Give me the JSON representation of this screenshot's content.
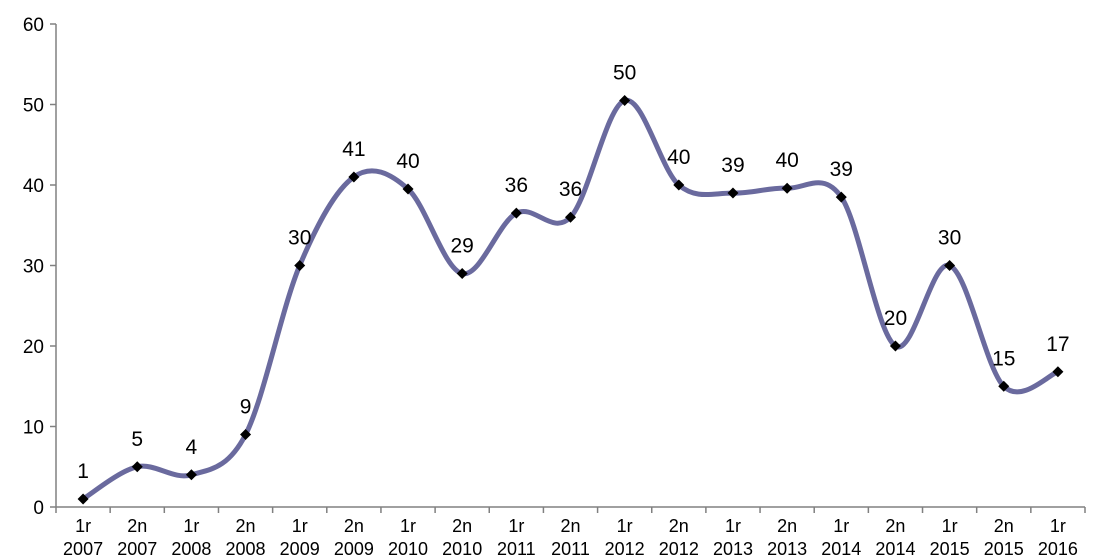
{
  "chart_data": {
    "type": "line",
    "title": "",
    "xlabel": "",
    "ylabel": "",
    "ylim": [
      0,
      60
    ],
    "yticks": [
      0,
      10,
      20,
      30,
      40,
      50,
      60
    ],
    "grid": false,
    "legend": "none",
    "smooth": true,
    "line_color": "#6a6a9e",
    "marker_color": "#000000",
    "categories": [
      [
        "1r",
        "2007"
      ],
      [
        "2n",
        "2007"
      ],
      [
        "1r",
        "2008"
      ],
      [
        "2n",
        "2008"
      ],
      [
        "1r",
        "2009"
      ],
      [
        "2n",
        "2009"
      ],
      [
        "1r",
        "2010"
      ],
      [
        "2n",
        "2010"
      ],
      [
        "1r",
        "2011"
      ],
      [
        "2n",
        "2011"
      ],
      [
        "1r",
        "2012"
      ],
      [
        "2n",
        "2012"
      ],
      [
        "1r",
        "2013"
      ],
      [
        "2n",
        "2013"
      ],
      [
        "1r",
        "2014"
      ],
      [
        "2n",
        "2014"
      ],
      [
        "1r",
        "2015"
      ],
      [
        "2n",
        "2015"
      ],
      [
        "1r",
        "2016"
      ]
    ],
    "series": [
      {
        "values": [
          1,
          5,
          4,
          9,
          30,
          41,
          39.5,
          29,
          36.5,
          36,
          50.5,
          40,
          39,
          39.6,
          38.5,
          20,
          30,
          15,
          16.8
        ],
        "labels": [
          "1",
          "5",
          "4",
          "9",
          "30",
          "41",
          "40",
          "29",
          "36",
          "36",
          "50",
          "40",
          "39",
          "40",
          "39",
          "20",
          "30",
          "15",
          "17"
        ]
      }
    ]
  }
}
